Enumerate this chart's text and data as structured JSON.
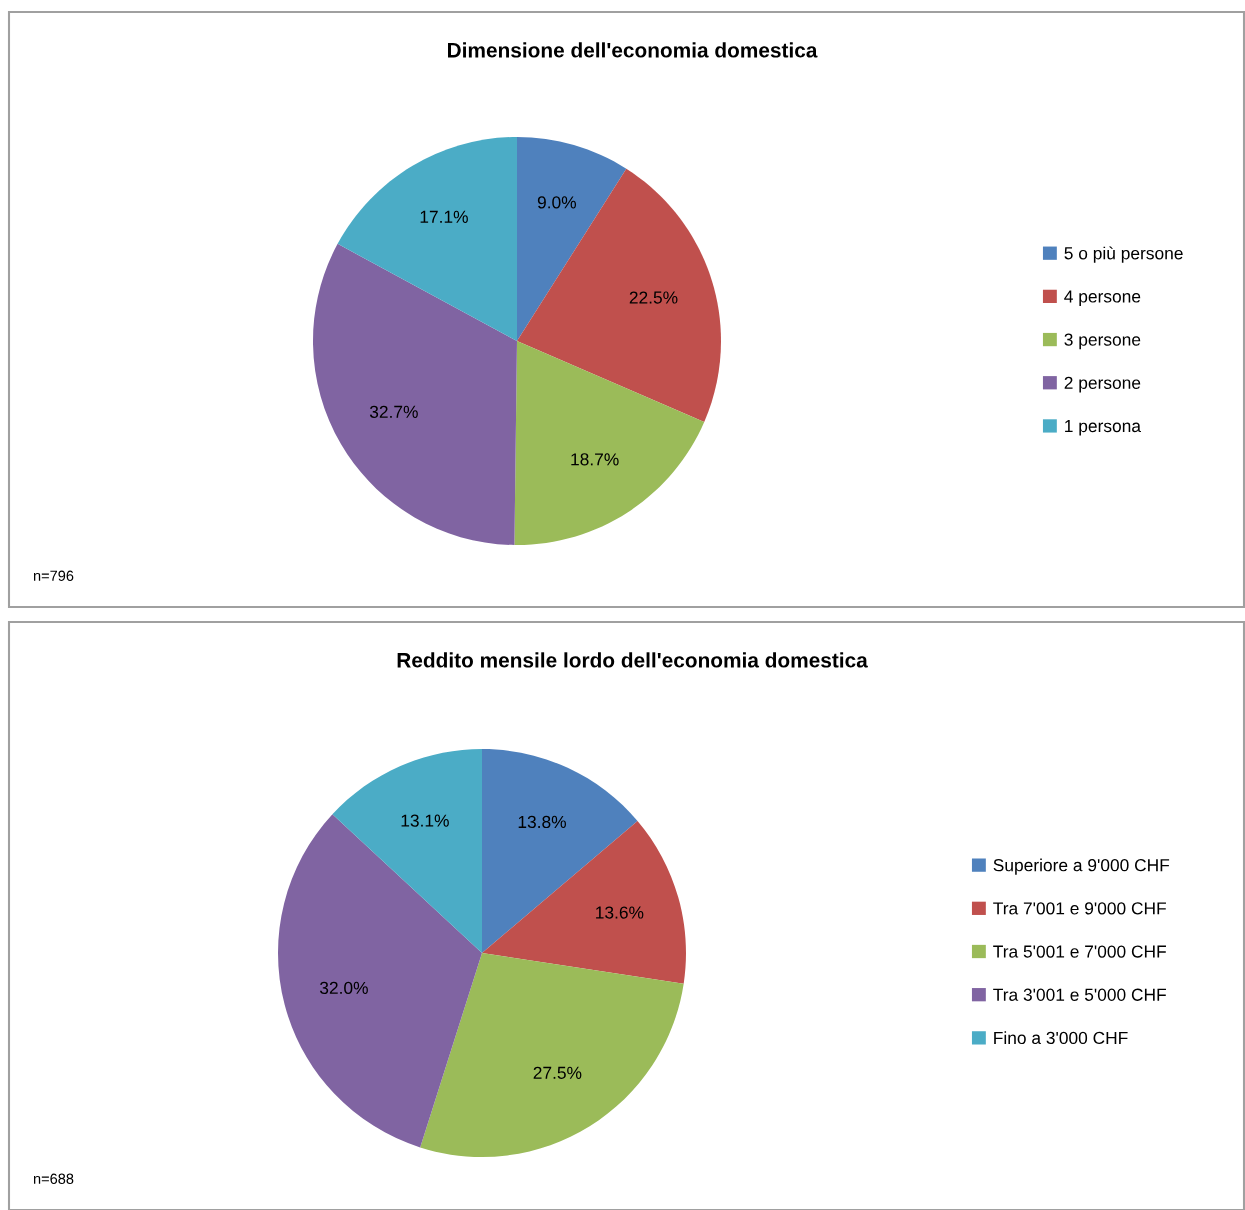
{
  "chart_data": [
    {
      "type": "pie",
      "title": "Dimensione dell'economia domestica",
      "categories": [
        "5 o più persone",
        "4 persone",
        "3 persone",
        "2 persone",
        "1 persona"
      ],
      "values": [
        9.0,
        22.5,
        18.7,
        32.7,
        17.1
      ],
      "colors": [
        "#4f81bd",
        "#c0504d",
        "#9bbb59",
        "#8064a2",
        "#4bacc6"
      ],
      "value_labels": [
        "9.0%",
        "22.5%",
        "18.7%",
        "32.7%",
        "17.1%"
      ],
      "legend": "right",
      "annotations": [
        "n=796"
      ]
    },
    {
      "type": "pie",
      "title": "Reddito mensile lordo dell'economia domestica",
      "categories": [
        "Superiore a 9'000 CHF",
        "Tra 7'001 e 9'000 CHF",
        "Tra 5'001 e 7'000 CHF",
        "Tra 3'001 e 5'000 CHF",
        "Fino a 3'000 CHF"
      ],
      "values": [
        13.8,
        13.6,
        27.5,
        32.0,
        13.1
      ],
      "colors": [
        "#4f81bd",
        "#c0504d",
        "#9bbb59",
        "#8064a2",
        "#4bacc6"
      ],
      "value_labels": [
        "13.8%",
        "13.6%",
        "27.5%",
        "32.0%",
        "13.1%"
      ],
      "legend": "right",
      "annotations": [
        "n=688"
      ]
    }
  ]
}
